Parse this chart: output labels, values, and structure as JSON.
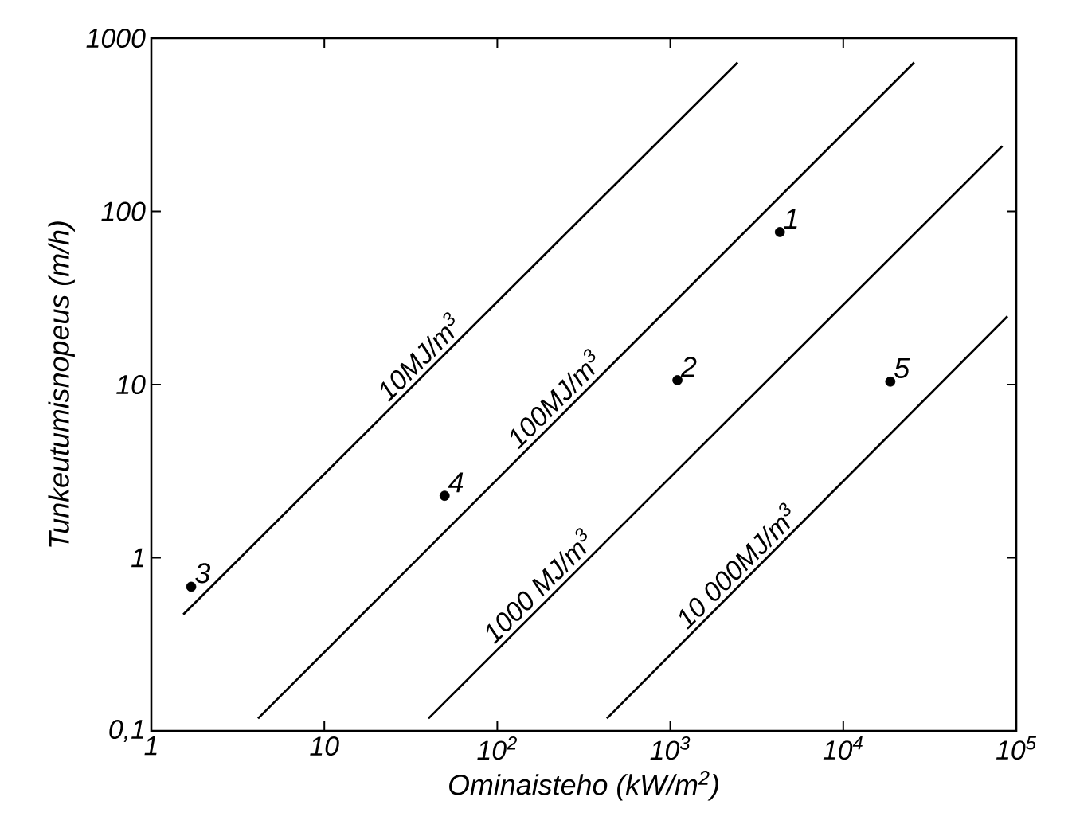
{
  "chart_data": {
    "type": "scatter",
    "xlabel": "Ominaisteho (kW/m$^{2}$)",
    "ylabel": "Tunkeutumisnopeus (m/h)",
    "log": "xy",
    "xlim": [
      1,
      100000
    ],
    "ylim": [
      0.1,
      1000
    ],
    "xticks": [
      1,
      10,
      {
        "value": 100,
        "label": "10$^{2}$"
      },
      {
        "value": 1000,
        "label": "10$^{3}$"
      },
      {
        "value": 10000,
        "label": "10$^{4}$"
      },
      {
        "value": 100000,
        "label": "10$^{5}$"
      }
    ],
    "yticks": [
      {
        "value": 0.1,
        "label": "0,1"
      },
      1,
      10,
      100,
      1000
    ],
    "series": [
      {
        "type": "line",
        "marker": "none",
        "color": "#000000",
        "x": [
          1.53,
          2450
        ],
        "values": [
          0.47,
          725
        ]
      },
      {
        "type": "line",
        "marker": "none",
        "color": "#000000",
        "x": [
          4.14,
          25700
        ],
        "values": [
          0.118,
          725
        ]
      },
      {
        "type": "line",
        "marker": "none",
        "color": "#000000",
        "x": [
          40,
          83000
        ],
        "values": [
          0.118,
          238
        ]
      },
      {
        "type": "line",
        "marker": "none",
        "color": "#000000",
        "x": [
          430,
          89000
        ],
        "values": [
          0.118,
          24.8
        ]
      },
      {
        "name": "1",
        "type": "scatter",
        "marker": "circle",
        "color": "#000000",
        "x": [
          4300
        ],
        "values": [
          76
        ]
      },
      {
        "name": "2",
        "type": "scatter",
        "marker": "circle",
        "color": "#000000",
        "x": [
          1100
        ],
        "values": [
          10.6
        ]
      },
      {
        "name": "3",
        "type": "scatter",
        "marker": "circle",
        "color": "#000000",
        "x": [
          1.7
        ],
        "values": [
          0.68
        ]
      },
      {
        "name": "4",
        "type": "scatter",
        "marker": "circle",
        "color": "#000000",
        "x": [
          49.6
        ],
        "values": [
          2.28
        ]
      },
      {
        "name": "5",
        "type": "scatter",
        "marker": "circle",
        "color": "#000000",
        "x": [
          18700
        ],
        "values": [
          10.4
        ]
      }
    ],
    "annotations": [
      {
        "text": "10MJ/m$^{3}$",
        "x": 41,
        "y": 12.4
      },
      {
        "text": "100MJ/m$^{3}$",
        "x": 248,
        "y": 7.1
      },
      {
        "text": "1000 MJ/m$^{3}$",
        "x": 200,
        "y": 0.59
      },
      {
        "text": "10 000MJ/m$^{3}$",
        "x": 2800,
        "y": 0.77
      }
    ]
  }
}
